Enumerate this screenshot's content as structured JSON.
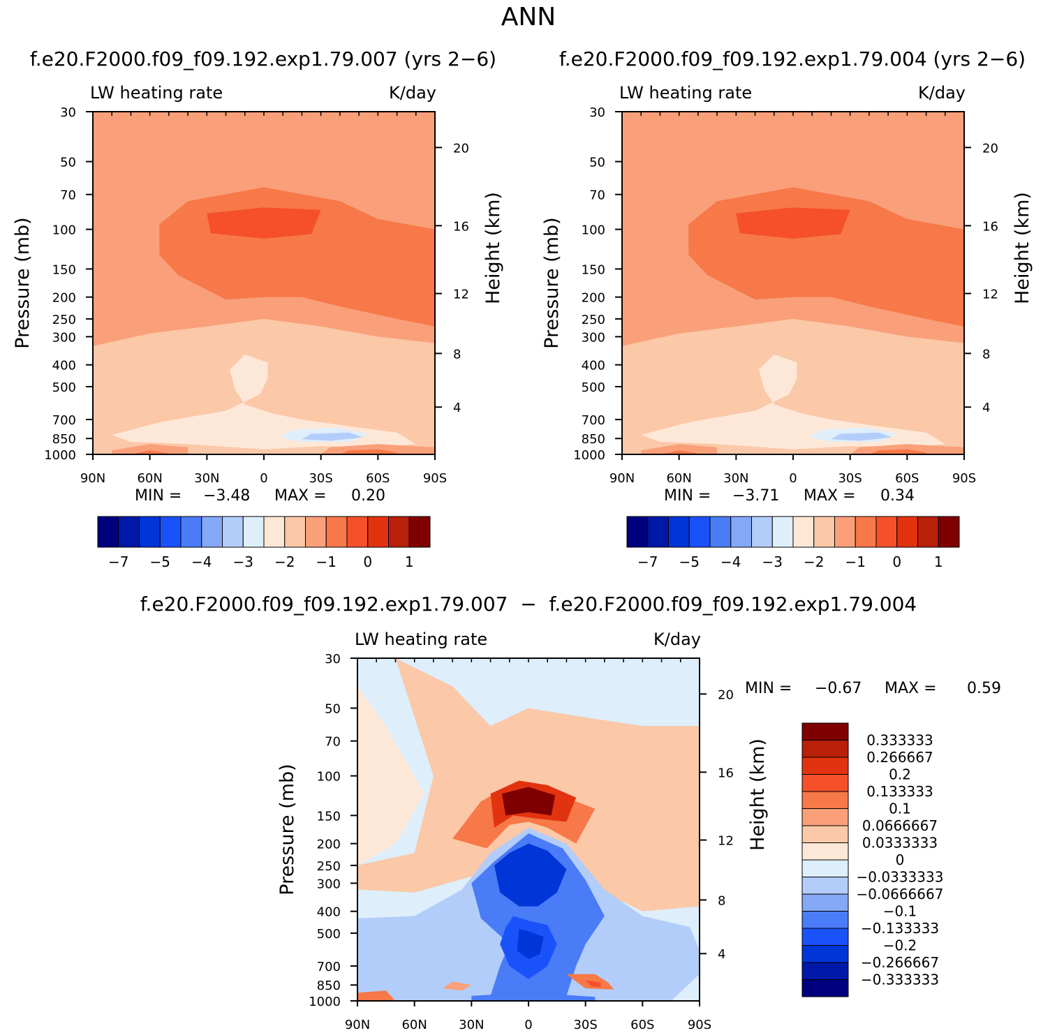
{
  "figure": {
    "title": "ANN",
    "diff_title": "f.e20.F2000.f09_f09.192.exp1.79.007  −  f.e20.F2000.f09_f09.192.exp1.79.004"
  },
  "colors": {
    "main_scale": [
      "#00007f",
      "#0018a8",
      "#0035d8",
      "#1a52fa",
      "#4a7cf7",
      "#84a8f6",
      "#b2cdf9",
      "#deeefb",
      "#fde8d8",
      "#fbc8a8",
      "#f9a07a",
      "#f77848",
      "#f5502a",
      "#e23310",
      "#b8200a",
      "#7f0000"
    ],
    "diff_scale": [
      "#00007f",
      "#0018a8",
      "#0035d8",
      "#1a52fa",
      "#4a7cf7",
      "#84a8f6",
      "#b2cdf9",
      "#deeefb",
      "#fde8d8",
      "#fbc8a8",
      "#f9a07a",
      "#f77848",
      "#f5502a",
      "#e23310",
      "#b8200a",
      "#7f0000"
    ]
  },
  "chart_data": [
    {
      "type": "heatmap",
      "title": "f.e20.F2000.f09_f09.192.exp1.79.007 (yrs 2−6)",
      "subtitle_left": "LW heating rate",
      "subtitle_right": "K/day",
      "xlabel": "",
      "ylabel": "Pressure (mb)",
      "ylabel_right": "Height (km)",
      "x_ticks": [
        "90N",
        "60N",
        "30N",
        "0",
        "30S",
        "60S",
        "90S"
      ],
      "x_values": [
        90,
        60,
        30,
        0,
        -30,
        -60,
        -90
      ],
      "y_ticks": [
        30,
        50,
        70,
        100,
        150,
        200,
        250,
        300,
        400,
        500,
        700,
        850,
        1000
      ],
      "y_range": [
        30,
        1000
      ],
      "y_scale": "log",
      "height_ticks": [
        20,
        16,
        12,
        8,
        4
      ],
      "min_label": "MIN =",
      "min_value": "−3.48",
      "max_label": "MAX =",
      "max_value": "0.20",
      "colorbar": {
        "orientation": "horizontal",
        "labels": [
          "−7",
          "−5",
          "−4",
          "−3",
          "−2",
          "−1",
          "0",
          "1"
        ]
      }
    },
    {
      "type": "heatmap",
      "title": "f.e20.F2000.f09_f09.192.exp1.79.004 (yrs 2−6)",
      "subtitle_left": "LW heating rate",
      "subtitle_right": "K/day",
      "xlabel": "",
      "ylabel": "Pressure (mb)",
      "ylabel_right": "Height (km)",
      "x_ticks": [
        "90N",
        "60N",
        "30N",
        "0",
        "30S",
        "60S",
        "90S"
      ],
      "x_values": [
        90,
        60,
        30,
        0,
        -30,
        -60,
        -90
      ],
      "y_ticks": [
        30,
        50,
        70,
        100,
        150,
        200,
        250,
        300,
        400,
        500,
        700,
        850,
        1000
      ],
      "y_range": [
        30,
        1000
      ],
      "y_scale": "log",
      "height_ticks": [
        20,
        16,
        12,
        8,
        4
      ],
      "min_label": "MIN =",
      "min_value": "−3.71",
      "max_label": "MAX =",
      "max_value": "0.34",
      "colorbar": {
        "orientation": "horizontal",
        "labels": [
          "−7",
          "−5",
          "−4",
          "−3",
          "−2",
          "−1",
          "0",
          "1"
        ]
      }
    },
    {
      "type": "heatmap",
      "title": "",
      "subtitle_left": "LW heating rate",
      "subtitle_right": "K/day",
      "xlabel": "",
      "ylabel": "Pressure (mb)",
      "ylabel_right": "Height (km)",
      "x_ticks": [
        "90N",
        "60N",
        "30N",
        "0",
        "30S",
        "60S",
        "90S"
      ],
      "x_values": [
        90,
        60,
        30,
        0,
        -30,
        -60,
        -90
      ],
      "y_ticks": [
        30,
        50,
        70,
        100,
        150,
        200,
        250,
        300,
        400,
        500,
        700,
        850,
        1000
      ],
      "y_range": [
        30,
        1000
      ],
      "y_scale": "log",
      "height_ticks": [
        20,
        16,
        12,
        8,
        4
      ],
      "min_label": "MIN =",
      "min_value": "−0.67",
      "max_label": "MAX =",
      "max_value": "0.59",
      "colorbar": {
        "orientation": "vertical",
        "labels": [
          "0.333333",
          "0.266667",
          "0.2",
          "0.133333",
          "0.1",
          "0.0666667",
          "0.0333333",
          "0",
          "−0.0333333",
          "−0.0666667",
          "−0.1",
          "−0.133333",
          "−0.2",
          "−0.266667",
          "−0.333333"
        ]
      }
    }
  ]
}
